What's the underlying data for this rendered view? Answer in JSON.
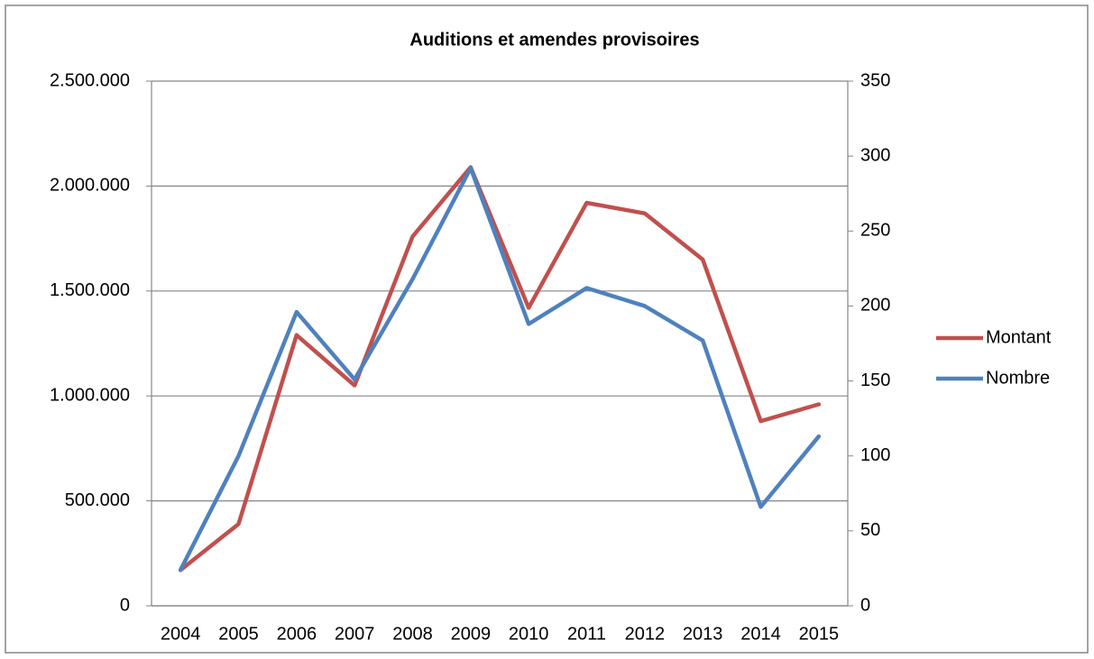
{
  "chart_data": {
    "type": "line",
    "title": "Auditions et amendes provisoires",
    "categories": [
      "2004",
      "2005",
      "2006",
      "2007",
      "2008",
      "2009",
      "2010",
      "2011",
      "2012",
      "2013",
      "2014",
      "2015"
    ],
    "series": [
      {
        "name": "Montant",
        "color": "#c0504d",
        "values": [
          170000,
          390000,
          1290000,
          1050000,
          1760000,
          2090000,
          1420000,
          1920000,
          1870000,
          1650000,
          880000,
          960000
        ]
      },
      {
        "name": "Nombre",
        "color": "#4f81bd",
        "axis": "y2",
        "values": [
          24,
          100,
          196,
          151,
          218,
          292,
          188,
          212,
          200,
          177,
          66,
          113
        ]
      }
    ],
    "ylim": [
      0,
      2500000
    ],
    "yticks": [
      0,
      {
        "value": 500000,
        "label": "500.000"
      },
      {
        "value": 1000000,
        "label": "1.000.000"
      },
      {
        "value": 1500000,
        "label": "1.500.000"
      },
      {
        "value": 2000000,
        "label": "2.000.000"
      },
      {
        "value": 2500000,
        "label": "2.500.000"
      }
    ],
    "y2lim": [
      0,
      350
    ],
    "y2ticks": [
      0,
      50,
      100,
      150,
      200,
      250,
      300,
      350
    ],
    "grid": true,
    "legend": "right"
  }
}
